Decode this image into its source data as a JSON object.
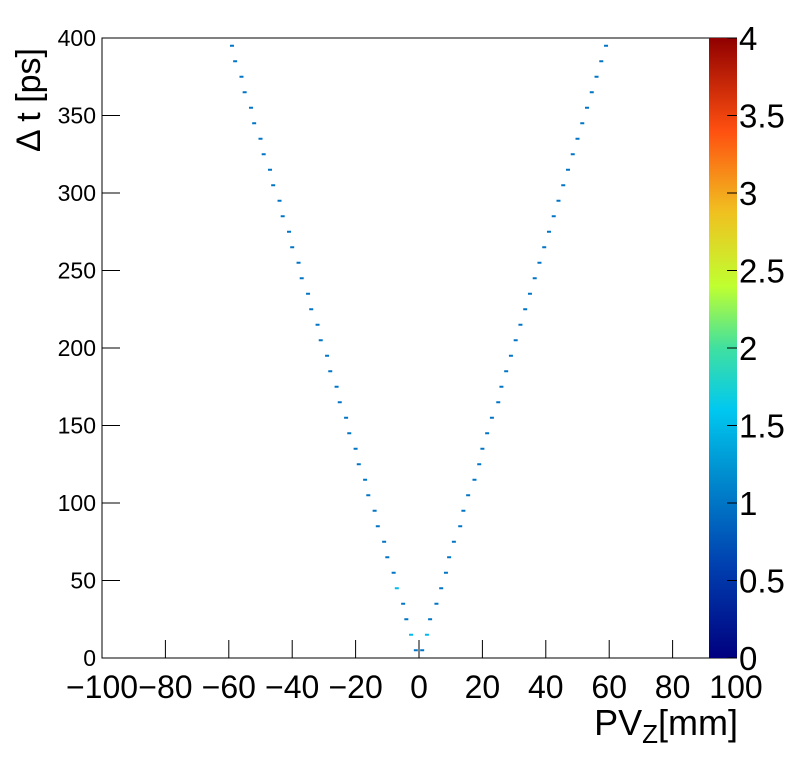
{
  "chart_data": {
    "type": "heatmap",
    "ylabel": "Δ t [ps]",
    "xlabel": "PV",
    "xlabel_sub": "Z",
    "xlabel_unit": "[mm]",
    "xlim": [
      -100,
      100
    ],
    "ylim": [
      0,
      400
    ],
    "zlim": [
      0,
      4
    ],
    "xticks": [
      {
        "value": -100,
        "label": "−100"
      },
      {
        "value": -80,
        "label": "−80"
      },
      {
        "value": -60,
        "label": "−60"
      },
      {
        "value": -40,
        "label": "−40"
      },
      {
        "value": -20,
        "label": "−20"
      },
      0,
      20,
      40,
      60,
      80,
      100
    ],
    "yticks": [
      0,
      50,
      100,
      150,
      200,
      250,
      300,
      350,
      400
    ],
    "zticks": [
      0,
      0.5,
      1,
      1.5,
      2,
      2.5,
      3,
      3.5,
      4
    ],
    "x": [
      -1,
      -2.5,
      -4,
      -5,
      -7,
      -8,
      -10,
      -11,
      -13,
      -14,
      -16,
      -17,
      -19,
      -20,
      -22,
      -23,
      -25,
      -26,
      -28,
      -29,
      -31,
      -32,
      -34,
      -35,
      -37,
      -38,
      -40,
      -41,
      -43,
      -44,
      -46,
      -47,
      -49,
      -50,
      -52,
      -53,
      -55,
      -56,
      -58,
      -59,
      1,
      2.5,
      3.5,
      5.5,
      7,
      8.5,
      9.5,
      11,
      13,
      14,
      15.5,
      17.5,
      19,
      20,
      21.5,
      23,
      25,
      26,
      27.5,
      29,
      30.5,
      32,
      33.5,
      35,
      36.5,
      38,
      39.5,
      41,
      42.5,
      44,
      45.5,
      47,
      48.5,
      50,
      51.5,
      53,
      54.5,
      56,
      57.5,
      59
    ],
    "values": [
      5,
      15,
      25,
      35,
      45,
      55,
      65,
      75,
      85,
      95,
      105,
      115,
      125,
      135,
      145,
      155,
      165,
      175,
      185,
      195,
      205,
      215,
      225,
      235,
      245,
      255,
      265,
      275,
      285,
      295,
      305,
      315,
      325,
      335,
      345,
      355,
      365,
      375,
      385,
      395,
      5,
      15,
      25,
      35,
      45,
      55,
      65,
      75,
      85,
      95,
      105,
      115,
      125,
      135,
      145,
      155,
      165,
      175,
      185,
      195,
      205,
      215,
      225,
      235,
      245,
      255,
      265,
      275,
      285,
      295,
      305,
      315,
      325,
      335,
      345,
      355,
      365,
      375,
      385,
      395
    ],
    "z": [
      1,
      1.5,
      1,
      1,
      1.5,
      1,
      1,
      1,
      1,
      1,
      1,
      1,
      1,
      1,
      1,
      1,
      1,
      1,
      1,
      1,
      1,
      1,
      1,
      1,
      1,
      1,
      1,
      1,
      1,
      1,
      1,
      1,
      1,
      1,
      1,
      1,
      1,
      1,
      1,
      1,
      1,
      1.5,
      1,
      1,
      1,
      1,
      1,
      1,
      1,
      1,
      1,
      1,
      1,
      1,
      1,
      1,
      1,
      1,
      1,
      1,
      1,
      1,
      1,
      1,
      1,
      1,
      1,
      1,
      1,
      1,
      1,
      1,
      1,
      1,
      1,
      1,
      1,
      1,
      1,
      1
    ]
  }
}
